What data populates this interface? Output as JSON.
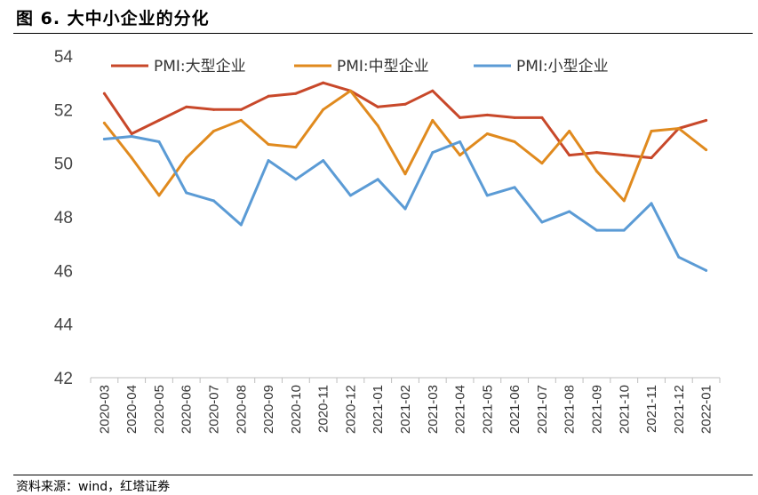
{
  "figure": {
    "title": "图 6. 大中小企业的分化",
    "source": "资料来源：wind，红塔证券"
  },
  "chart_data": {
    "type": "line",
    "title": "大中小企业的分化",
    "xlabel": "",
    "ylabel": "",
    "ylim": [
      42,
      54
    ],
    "yticks": [
      "42",
      "44",
      "46",
      "48",
      "50",
      "52",
      "54"
    ],
    "grid": false,
    "legend_position": "top",
    "categories": [
      "2020-03",
      "2020-04",
      "2020-05",
      "2020-06",
      "2020-07",
      "2020-08",
      "2020-09",
      "2020-10",
      "2020-11",
      "2020-12",
      "2021-01",
      "2021-02",
      "2021-03",
      "2021-04",
      "2021-05",
      "2021-06",
      "2021-07",
      "2021-08",
      "2021-09",
      "2021-10",
      "2021-11",
      "2021-12",
      "2022-01"
    ],
    "series": [
      {
        "name": "PMI:大型企业",
        "color": "#c8482a",
        "values": [
          52.6,
          51.1,
          51.6,
          52.1,
          52.0,
          52.0,
          52.5,
          52.6,
          53.0,
          52.7,
          52.1,
          52.2,
          52.7,
          51.7,
          51.8,
          51.7,
          51.7,
          50.3,
          50.4,
          50.3,
          50.2,
          51.3,
          51.6
        ]
      },
      {
        "name": "PMI:中型企业",
        "color": "#e08a1e",
        "values": [
          51.5,
          50.2,
          48.8,
          50.2,
          51.2,
          51.6,
          50.7,
          50.6,
          52.0,
          52.7,
          51.4,
          49.6,
          51.6,
          50.3,
          51.1,
          50.8,
          50.0,
          51.2,
          49.7,
          48.6,
          51.2,
          51.3,
          50.5
        ]
      },
      {
        "name": "PMI:小型企业",
        "color": "#5b9bd5",
        "values": [
          50.9,
          51.0,
          50.8,
          48.9,
          48.6,
          47.7,
          50.1,
          49.4,
          50.1,
          48.8,
          49.4,
          48.3,
          50.4,
          50.8,
          48.8,
          49.1,
          47.8,
          48.2,
          47.5,
          47.5,
          48.5,
          46.5,
          46.0
        ]
      }
    ]
  }
}
